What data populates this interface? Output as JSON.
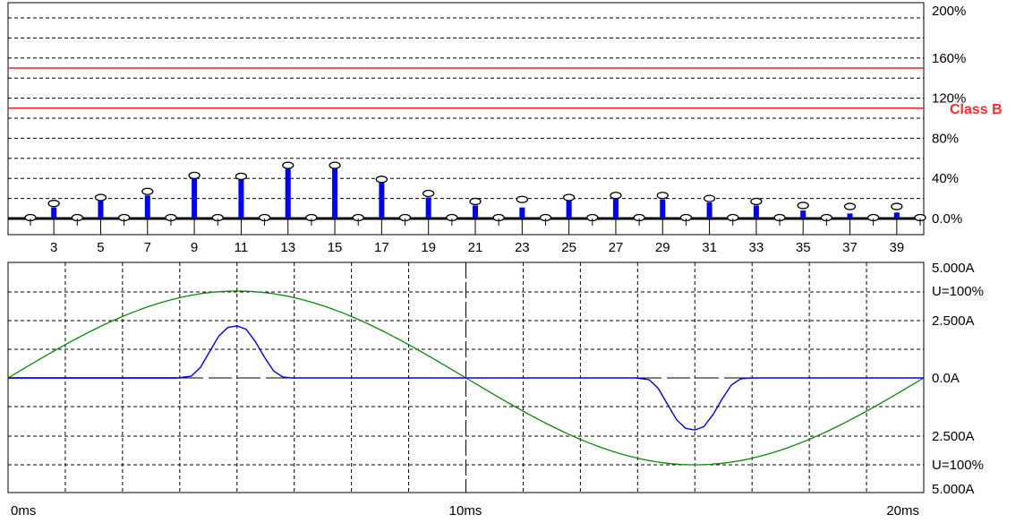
{
  "chart_data": [
    {
      "type": "bar",
      "description_hidden": "",
      "y_tick_labels": [
        "200%",
        "160%",
        "120%",
        "80%",
        "40%",
        "0.0%"
      ],
      "y_ticks": [
        200,
        160,
        120,
        80,
        40,
        0
      ],
      "ylim": [
        0,
        200
      ],
      "grid": true,
      "x_tick_labels": [
        "3",
        "5",
        "7",
        "9",
        "11",
        "13",
        "15",
        "17",
        "19",
        "21",
        "23",
        "25",
        "27",
        "29",
        "31",
        "33",
        "35",
        "37",
        "39"
      ],
      "harmonics": [
        2,
        3,
        4,
        5,
        6,
        7,
        8,
        9,
        10,
        11,
        12,
        13,
        14,
        15,
        16,
        17,
        18,
        19,
        20,
        21,
        22,
        23,
        24,
        25,
        26,
        27,
        28,
        29,
        30,
        31,
        32,
        33,
        34,
        35,
        36,
        37,
        38,
        39,
        40
      ],
      "values": [
        0,
        11,
        0,
        18,
        0,
        23,
        0,
        41,
        0,
        39,
        0,
        50,
        0,
        50,
        0,
        36,
        0,
        21,
        0,
        13,
        0,
        11,
        0,
        18,
        0,
        21,
        0,
        19,
        0,
        16,
        0,
        13,
        0,
        8,
        0,
        5,
        0,
        6,
        0
      ],
      "limit_markers": [
        0,
        15,
        0,
        21,
        0,
        27,
        0,
        43,
        0,
        42,
        0,
        53,
        0,
        53,
        0,
        39,
        0,
        25,
        0,
        17,
        0,
        19,
        0,
        21,
        0,
        23,
        0,
        23,
        0,
        20,
        0,
        17,
        0,
        13,
        0,
        12,
        0,
        12,
        0
      ],
      "limit_lines": [
        {
          "value": 150,
          "color": "#e8202a"
        },
        {
          "value": 110,
          "color": "#e8202a"
        }
      ],
      "class_label": "Class B",
      "colors": {
        "bar": "#0000ff",
        "limit_line": "#e8202a",
        "class_label": "#ff2a2a"
      }
    },
    {
      "type": "line",
      "x_tick_labels": [
        "0ms",
        "10ms",
        "20ms"
      ],
      "x_ticks": [
        0,
        10,
        20
      ],
      "xlim": [
        0,
        20
      ],
      "y_tick_labels": [
        "5.000A",
        "U=100%",
        "2.500A",
        "0.0A",
        "2.500A",
        "U=100%",
        "5.000A"
      ],
      "ylim": [
        -5,
        5
      ],
      "grid": true,
      "series": [
        {
          "color": "#0a8a0a",
          "kind": "voltage-sine",
          "x": [
            0,
            1,
            2,
            3,
            4,
            5,
            6,
            7,
            8,
            9,
            10,
            11,
            12,
            13,
            14,
            15,
            16,
            17,
            18,
            19,
            20
          ],
          "y": [
            0,
            1.55,
            2.94,
            4.05,
            4.76,
            5.0,
            4.76,
            4.05,
            2.94,
            1.55,
            0,
            -1.55,
            -2.94,
            -4.05,
            -4.76,
            -5.0,
            -4.76,
            -4.05,
            -2.94,
            -1.55,
            0
          ]
        },
        {
          "color": "#0000ff",
          "kind": "current",
          "x": [
            0,
            3.7,
            4.0,
            4.2,
            4.4,
            4.6,
            4.8,
            5.0,
            5.2,
            5.4,
            5.6,
            5.8,
            6.0,
            6.2,
            10,
            13.7,
            14.0,
            14.2,
            14.4,
            14.6,
            14.8,
            15.0,
            15.2,
            15.4,
            15.6,
            15.8,
            16.0,
            16.2,
            20
          ],
          "y": [
            0,
            0,
            0.1,
            0.6,
            1.5,
            2.4,
            2.9,
            3.0,
            2.8,
            2.1,
            1.2,
            0.4,
            0.05,
            0,
            0,
            0,
            -0.1,
            -0.6,
            -1.5,
            -2.4,
            -2.9,
            -3.0,
            -2.8,
            -2.1,
            -1.2,
            -0.4,
            -0.05,
            0,
            0
          ]
        }
      ],
      "colors": {
        "voltage": "#0a8a0a",
        "current": "#0000ff"
      }
    }
  ]
}
